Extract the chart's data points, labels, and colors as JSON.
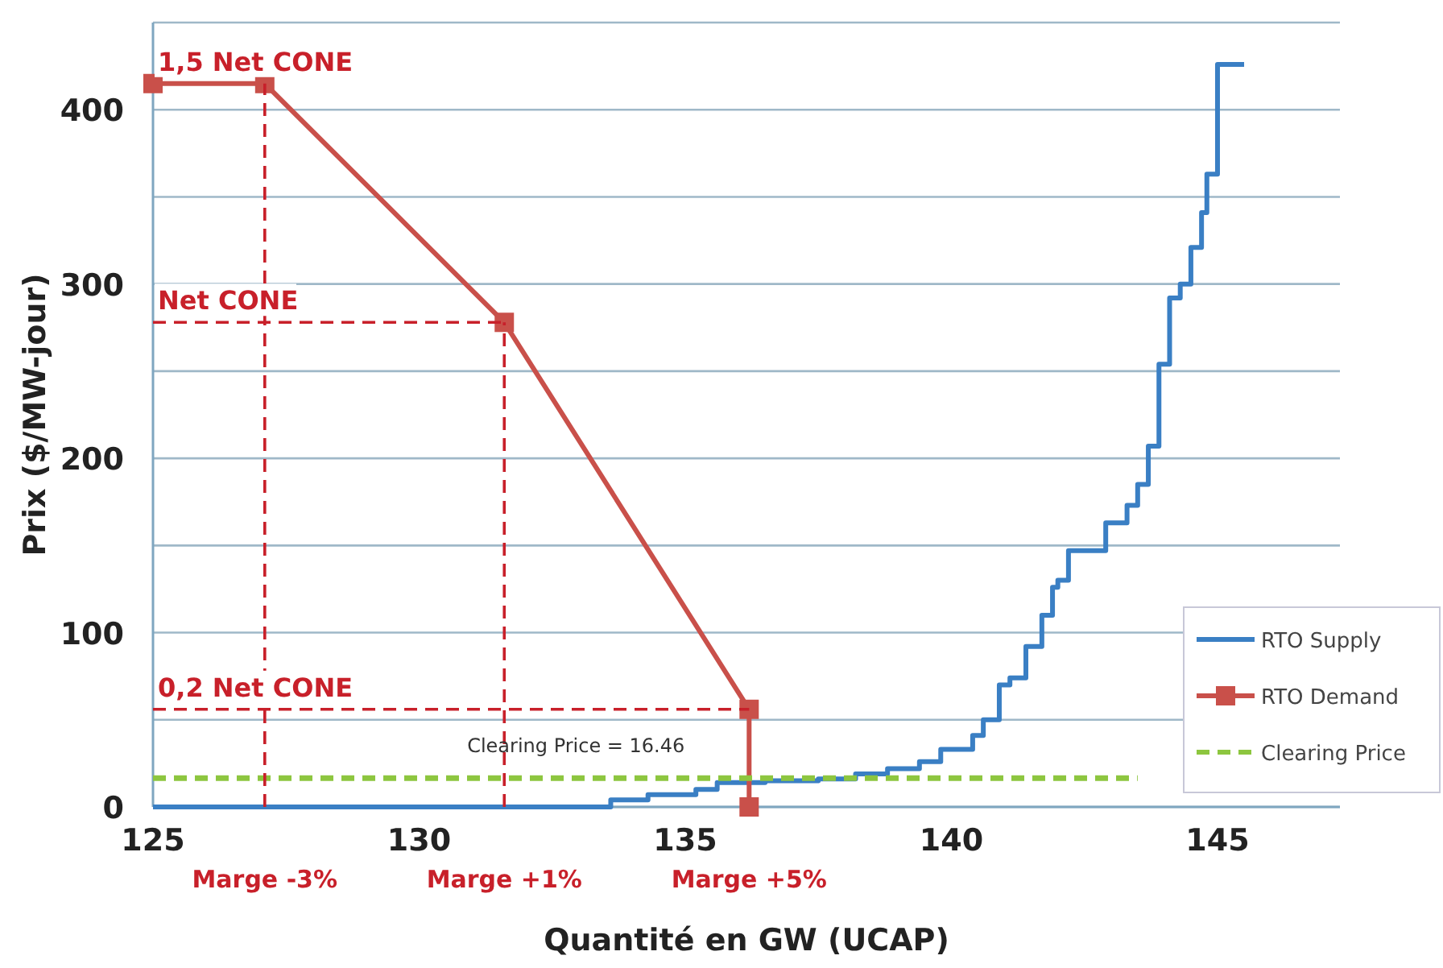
{
  "chart_data": {
    "type": "line",
    "xlabel": "Quantité en GW (UCAP)",
    "ylabel": "Prix ($/MW-jour)",
    "xlim": [
      125,
      147.3
    ],
    "xticks": [
      125,
      130,
      135,
      140,
      145
    ],
    "ylim": [
      0,
      450
    ],
    "yticks": [
      0,
      {
        "value": 50,
        "label": null
      },
      100,
      {
        "value": 150,
        "label": null
      },
      200,
      {
        "value": 250,
        "label": null
      },
      300,
      {
        "value": 350,
        "label": null
      },
      400,
      {
        "value": 450,
        "label": null
      }
    ],
    "grid": "y",
    "legend": "bottom right",
    "series": [
      {
        "name": "RTO Supply",
        "type": "step",
        "color": "#3a7fc4",
        "marker": "none",
        "x": [
          125,
          133.6,
          134.3,
          135.2,
          135.6,
          136.5,
          137.5,
          138.2,
          138.8,
          139.4,
          139.8,
          140.4,
          140.6,
          140.9,
          141.1,
          141.4,
          141.7,
          141.9,
          142.0,
          142.2,
          142.9,
          143.3,
          143.5,
          143.7,
          143.9,
          144.1,
          144.3,
          144.5,
          144.7,
          144.8,
          145.0,
          145.5
        ],
        "values": [
          0,
          4,
          7,
          10,
          14,
          15,
          16,
          19,
          22,
          26,
          33,
          41,
          50,
          70,
          74,
          92,
          110,
          126,
          130,
          147,
          163,
          173,
          185,
          207,
          254,
          292,
          300,
          321,
          341,
          363,
          426,
          426
        ]
      },
      {
        "name": "RTO Demand",
        "color": "#c9504a",
        "marker": "square",
        "x": [
          125,
          127.1,
          131.6,
          136.2,
          136.2
        ],
        "values": [
          415,
          415,
          278,
          56,
          0
        ]
      },
      {
        "name": "Clearing Price",
        "color": "#8dc63f",
        "marker": "none",
        "line_style": "dashed",
        "x": [
          125,
          143.5
        ],
        "values": [
          16.46,
          16.46
        ]
      },
      {
        "type": "line",
        "color": "#c8202a",
        "marker": "none",
        "line_style": "dashed",
        "x": [
          127.1,
          127.1
        ],
        "values": [
          0,
          415
        ]
      },
      {
        "type": "line",
        "color": "#c8202a",
        "marker": "none",
        "line_style": "dashed",
        "x": [
          125,
          131.6
        ],
        "values": [
          278,
          278
        ]
      },
      {
        "type": "line",
        "color": "#c8202a",
        "marker": "none",
        "line_style": "dashed",
        "x": [
          131.6,
          131.6
        ],
        "values": [
          0,
          278
        ]
      },
      {
        "type": "line",
        "color": "#c8202a",
        "marker": "none",
        "line_style": "dashed",
        "x": [
          125,
          136.2
        ],
        "values": [
          56,
          56
        ]
      }
    ],
    "annotations": [
      {
        "text": "1,5 Net CONE",
        "y": 415
      },
      {
        "text": "Net CONE",
        "y": 278
      },
      {
        "text": "0,2 Net CONE",
        "y": 56
      },
      {
        "text": "Clearing Price = 16.46",
        "y": 16.46
      },
      "Marge -3%",
      "Marge +1%",
      "Marge +5%"
    ]
  }
}
